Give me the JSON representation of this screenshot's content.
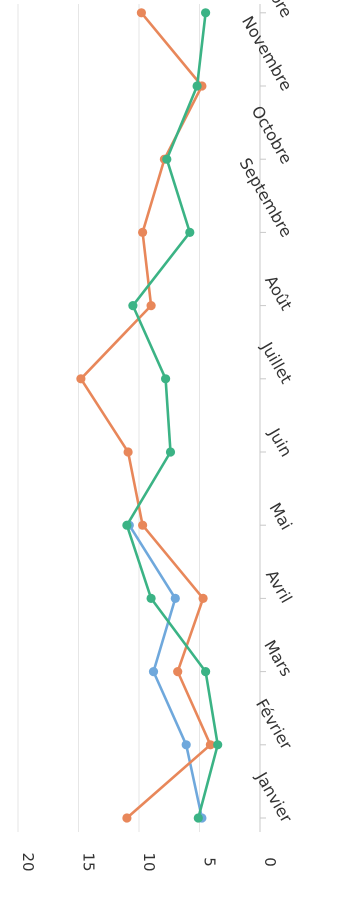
{
  "chart_data": {
    "type": "line",
    "orientation": "rotated-90-clockwise",
    "title": "",
    "xlabel": "",
    "ylabel": "",
    "categories": [
      "Janvier",
      "Février",
      "Mars",
      "Avril",
      "Mai",
      "Juin",
      "Juillet",
      "Août",
      "Septembre",
      "Octobre",
      "Novembre",
      "Décembre"
    ],
    "ylim": [
      0,
      20
    ],
    "yticks": [
      "0",
      "5",
      "10",
      "15",
      "20"
    ],
    "grid": true,
    "legend": "none",
    "series": [
      {
        "color": "#6fa8dc",
        "values": [
          4.8,
          6.1,
          8.8,
          7.0,
          10.8,
          null,
          null,
          null,
          null,
          null,
          null,
          null
        ]
      },
      {
        "color": "#e8875a",
        "values": [
          11.0,
          4.1,
          6.8,
          4.7,
          9.7,
          10.9,
          14.8,
          9.0,
          9.7,
          7.9,
          4.8,
          9.8
        ]
      },
      {
        "color": "#3bb385",
        "values": [
          5.1,
          3.5,
          4.5,
          9.0,
          11.0,
          7.4,
          7.8,
          10.5,
          5.8,
          7.7,
          5.2,
          4.5
        ]
      }
    ]
  }
}
